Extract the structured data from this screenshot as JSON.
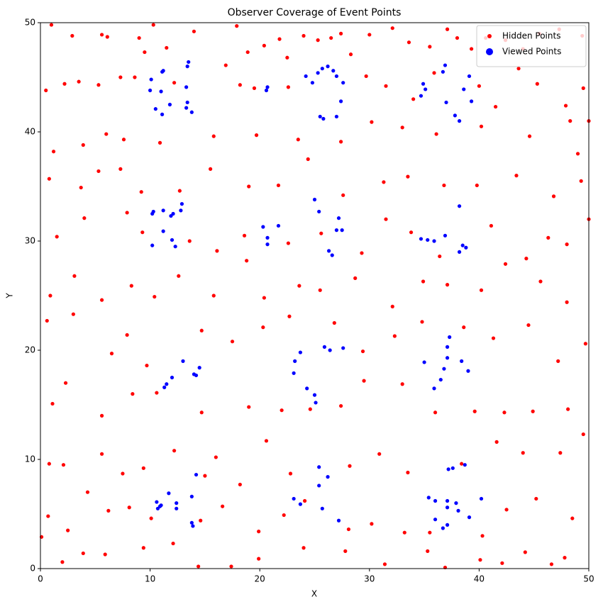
{
  "chart_data": {
    "type": "scatter",
    "title": "Observer Coverage of Event Points",
    "x_label": "X",
    "y_label": "Y",
    "xlim": [
      0,
      50
    ],
    "ylim": [
      0,
      50
    ],
    "xticks": [
      0,
      10,
      20,
      30,
      40,
      50
    ],
    "yticks": [
      0,
      10,
      20,
      30,
      40,
      50
    ],
    "legend": "upper right",
    "series": [
      {
        "name": "Hidden Points",
        "color": "#ff0000",
        "x": [
          1.0,
          2.9,
          5.6,
          6.1,
          9.0,
          9.5,
          10.3,
          11.5,
          14.0,
          17.9,
          18.9,
          20.4,
          21.8,
          22.5,
          24.0,
          25.3,
          26.5,
          27.4,
          28.3,
          30.0,
          32.1,
          33.6,
          35.5,
          37.1,
          38.0,
          39.3,
          40.6,
          42.4,
          44.0,
          45.5,
          47.3,
          49.4,
          0.5,
          2.2,
          3.5,
          5.3,
          7.3,
          8.6,
          12.2,
          16.9,
          18.2,
          19.5,
          22.6,
          29.7,
          31.5,
          34.0,
          35.9,
          40.0,
          41.5,
          43.6,
          45.3,
          47.9,
          49.5,
          50,
          1.2,
          3.9,
          6.0,
          7.6,
          10.9,
          15.8,
          19.7,
          23.5,
          27.4,
          30.2,
          33.0,
          36.1,
          40.2,
          44.6,
          48.3,
          49.0,
          0.8,
          3.7,
          5.3,
          7.3,
          9.2,
          12.7,
          15.5,
          19.0,
          21.7,
          24.4,
          27.6,
          31.3,
          33.5,
          36.8,
          39.8,
          43.4,
          46.8,
          49.3,
          1.5,
          4.0,
          7.9,
          9.3,
          13.6,
          16.1,
          18.6,
          22.6,
          25.6,
          29.3,
          31.5,
          33.8,
          36.4,
          41.1,
          44.3,
          46.3,
          48.0,
          50,
          0.9,
          3.1,
          5.6,
          8.3,
          10.4,
          12.6,
          15.8,
          18.8,
          20.4,
          23.6,
          25.5,
          28.7,
          32.1,
          34.9,
          37.1,
          40.2,
          42.4,
          45.6,
          48.0,
          0.6,
          3.0,
          6.5,
          7.9,
          9.7,
          14.7,
          17.5,
          20.3,
          22.7,
          26.8,
          29.4,
          32.3,
          34.8,
          38.6,
          41.3,
          44.5,
          47.2,
          49.7,
          1.1,
          2.3,
          5.6,
          8.4,
          10.6,
          14.7,
          16.0,
          19.0,
          22.0,
          24.6,
          27.4,
          29.5,
          33.0,
          36.0,
          39.6,
          42.3,
          44.9,
          48.1,
          49.5,
          0.8,
          2.1,
          5.6,
          7.5,
          9.4,
          12.2,
          15.0,
          18.2,
          20.6,
          22.8,
          28.2,
          30.9,
          33.5,
          38.4,
          41.6,
          44.0,
          47.4,
          0.7,
          2.5,
          4.3,
          6.2,
          8.1,
          10.1,
          14.6,
          16.6,
          19.9,
          22.2,
          24.1,
          28.1,
          30.2,
          33.2,
          35.5,
          40.3,
          42.5,
          45.2,
          48.5,
          0.1,
          2.0,
          3.9,
          5.9,
          9.4,
          12.1,
          14.4,
          17.4,
          19.9,
          24.0,
          27.8,
          31.4,
          35.3,
          36.9,
          40.1,
          42.1,
          44.2,
          46.6,
          47.8
        ],
        "values": [
          49.8,
          48.8,
          48.9,
          48.7,
          48.6,
          47.3,
          49.8,
          47.7,
          49.2,
          49.7,
          47.3,
          47.9,
          48.5,
          46.8,
          48.8,
          48.4,
          48.6,
          49.0,
          47.1,
          48.9,
          49.5,
          48.2,
          47.8,
          49.4,
          48.6,
          47.6,
          48.6,
          48.4,
          47.6,
          49.0,
          49.4,
          48.8,
          43.8,
          44.4,
          44.6,
          44.3,
          45.0,
          45.0,
          44.5,
          46.1,
          44.3,
          44.0,
          44.1,
          45.1,
          44.2,
          43.0,
          45.4,
          44.2,
          42.3,
          45.8,
          44.4,
          42.4,
          44.0,
          41.0,
          38.2,
          38.8,
          39.8,
          39.3,
          39.0,
          39.6,
          39.7,
          39.3,
          39.1,
          40.9,
          40.4,
          39.8,
          40.5,
          39.6,
          41.0,
          38.0,
          35.7,
          34.9,
          36.4,
          36.6,
          34.5,
          34.6,
          36.6,
          35.0,
          35.1,
          37.5,
          34.2,
          35.4,
          35.9,
          35.1,
          35.1,
          36.0,
          34.1,
          35.5,
          30.4,
          32.1,
          32.6,
          30.8,
          30.0,
          29.1,
          30.5,
          29.8,
          30.7,
          28.9,
          32.0,
          30.8,
          28.6,
          31.4,
          28.4,
          30.3,
          29.7,
          32.0,
          25.0,
          26.8,
          24.6,
          25.9,
          24.9,
          26.8,
          25.0,
          28.2,
          24.8,
          25.9,
          25.5,
          26.6,
          24.0,
          26.3,
          26.0,
          25.5,
          27.9,
          26.3,
          24.4,
          22.7,
          23.3,
          19.7,
          21.4,
          18.6,
          21.8,
          20.8,
          22.1,
          23.1,
          22.5,
          19.9,
          21.3,
          22.6,
          22.1,
          21.1,
          22.3,
          19.0,
          20.6,
          15.1,
          17.0,
          14.0,
          16.0,
          16.1,
          14.3,
          10.2,
          14.8,
          14.5,
          14.6,
          14.9,
          17.2,
          16.9,
          14.3,
          14.4,
          14.3,
          14.4,
          14.6,
          12.3,
          9.6,
          9.5,
          10.5,
          8.7,
          9.2,
          10.8,
          8.5,
          7.7,
          11.7,
          8.7,
          9.4,
          10.5,
          8.8,
          9.6,
          11.6,
          10.6,
          10.6,
          4.8,
          3.5,
          7.0,
          5.3,
          5.6,
          4.6,
          4.4,
          5.7,
          3.4,
          4.9,
          6.2,
          3.6,
          4.1,
          3.3,
          3.3,
          3.0,
          5.4,
          6.4,
          4.6,
          2.9,
          0.6,
          1.4,
          1.3,
          1.9,
          2.3,
          0.2,
          0.2,
          0.9,
          1.9,
          1.6,
          0.4,
          1.6,
          0.1,
          0.8,
          0.5,
          1.5,
          0.4,
          1.0
        ]
      },
      {
        "name": "Viewed Points",
        "color": "#0000ff",
        "x": [
          10.0,
          10.1,
          10.5,
          11.0,
          11.1,
          11.2,
          11.1,
          11.8,
          13.3,
          13.4,
          13.5,
          13.3,
          13.4,
          13.8,
          20.6,
          20.7,
          24.2,
          24.8,
          25.3,
          25.7,
          26.2,
          26.7,
          27.0,
          27.6,
          27.4,
          27.0,
          25.5,
          25.8,
          34.9,
          35.1,
          34.7,
          36.7,
          36.9,
          37.0,
          37.8,
          38.2,
          38.6,
          39.1,
          39.3,
          38.2,
          10.2,
          10.2,
          10.3,
          11.2,
          11.2,
          11.9,
          12.1,
          12.0,
          12.3,
          12.8,
          12.9,
          20.3,
          20.7,
          20.7,
          21.7,
          25.0,
          25.4,
          27.2,
          27.0,
          27.5,
          26.3,
          26.6,
          34.7,
          35.3,
          35.9,
          36.9,
          38.5,
          38.8,
          38.2,
          13.0,
          14.0,
          14.2,
          14.5,
          12.0,
          11.5,
          11.3,
          23.2,
          23.7,
          23.1,
          24.3,
          25.0,
          25.1,
          25.9,
          26.4,
          27.6,
          35.0,
          35.9,
          36.5,
          36.8,
          37.1,
          37.1,
          37.3,
          38.4,
          39.0,
          10.6,
          10.9,
          11.0,
          10.7,
          11.7,
          12.4,
          12.4,
          13.8,
          13.8,
          13.9,
          14.2,
          23.1,
          23.7,
          25.4,
          25.4,
          25.7,
          26.2,
          27.2,
          35.4,
          36.0,
          36.0,
          36.7,
          37.1,
          37.1,
          37.1,
          37.2,
          37.6,
          37.9,
          38.1,
          38.7,
          39.1,
          40.2
        ],
        "values": [
          43.8,
          44.8,
          42.1,
          43.7,
          45.5,
          45.6,
          41.6,
          42.5,
          42.2,
          46.0,
          46.4,
          44.1,
          42.7,
          41.8,
          43.8,
          44.1,
          45.1,
          44.5,
          45.4,
          45.8,
          46.0,
          45.6,
          45.1,
          44.5,
          42.8,
          41.4,
          41.4,
          41.2,
          44.4,
          43.9,
          43.3,
          45.5,
          46.1,
          42.7,
          41.5,
          41.0,
          43.9,
          45.1,
          42.8,
          33.2,
          29.6,
          32.5,
          32.7,
          30.9,
          32.8,
          32.3,
          32.5,
          30.1,
          29.5,
          32.8,
          33.4,
          31.3,
          30.3,
          29.7,
          31.4,
          33.8,
          32.7,
          32.1,
          31.0,
          31.0,
          29.1,
          28.7,
          30.2,
          30.1,
          30.0,
          30.5,
          29.6,
          29.4,
          29.0,
          19.0,
          17.8,
          17.7,
          18.4,
          17.5,
          16.9,
          16.6,
          19.0,
          19.8,
          17.9,
          16.5,
          15.9,
          15.2,
          20.3,
          20.0,
          20.2,
          18.9,
          16.5,
          17.3,
          18.3,
          19.3,
          20.3,
          21.2,
          19.0,
          18.1,
          6.1,
          5.7,
          5.8,
          5.5,
          6.9,
          6.0,
          5.5,
          6.6,
          4.2,
          3.9,
          8.6,
          6.4,
          5.9,
          9.3,
          7.6,
          5.5,
          8.4,
          4.4,
          6.5,
          6.2,
          4.5,
          3.7,
          6.2,
          5.6,
          4.0,
          9.1,
          9.2,
          6.0,
          5.3,
          9.5,
          4.7,
          6.4
        ]
      }
    ]
  }
}
